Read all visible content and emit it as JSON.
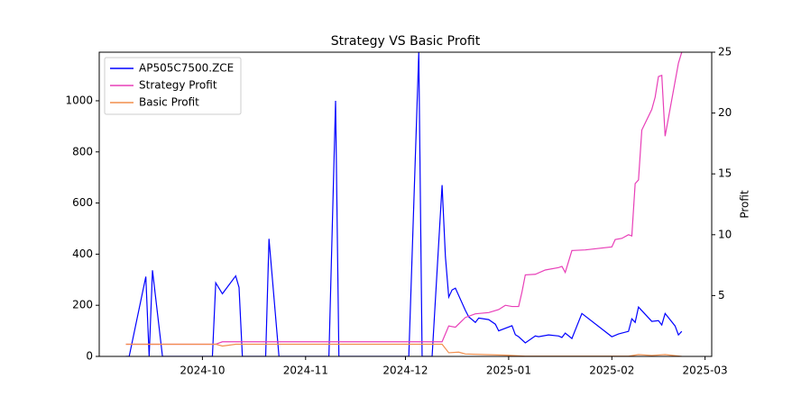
{
  "chart_data": {
    "type": "line",
    "title": "Strategy VS Basic Profit",
    "y2label": "Profit",
    "legend": "upper left",
    "xlim": [
      "2024-08-31",
      "2025-03-03"
    ],
    "xticks": [
      {
        "value": "2024-10-01",
        "label": "2024-10"
      },
      {
        "value": "2024-11-01",
        "label": "2024-11"
      },
      {
        "value": "2024-12-01",
        "label": "2024-12"
      },
      {
        "value": "2025-01-01",
        "label": "2025-01"
      },
      {
        "value": "2025-02-01",
        "label": "2025-02"
      },
      {
        "value": "2025-03-01",
        "label": "2025-03"
      }
    ],
    "ylim": [
      0,
      1190
    ],
    "yticks": [
      0,
      200,
      400,
      600,
      800,
      1000
    ],
    "y2lim": [
      0,
      25
    ],
    "y2ticks": [
      5,
      10,
      15,
      20,
      25
    ],
    "series": [
      {
        "name": "AP505C7500.ZCE",
        "color": "#0000ff",
        "x": [
          "2024-09-08",
          "2024-09-09",
          "2024-09-14",
          "2024-09-15",
          "2024-09-16",
          "2024-09-19",
          "2024-10-04",
          "2024-10-05",
          "2024-10-07",
          "2024-10-11",
          "2024-10-12",
          "2024-10-13",
          "2024-10-20",
          "2024-10-21",
          "2024-10-24",
          "2024-11-08",
          "2024-11-10",
          "2024-11-11",
          "2024-12-02",
          "2024-12-05",
          "2024-12-06",
          "2024-12-09",
          "2024-12-12",
          "2024-12-13",
          "2024-12-14",
          "2024-12-15",
          "2024-12-16",
          "2024-12-19",
          "2024-12-20",
          "2024-12-22",
          "2024-12-23",
          "2024-12-26",
          "2024-12-28",
          "2024-12-29",
          "2025-01-02",
          "2025-01-03",
          "2025-01-04",
          "2025-01-06",
          "2025-01-09",
          "2025-01-10",
          "2025-01-13",
          "2025-01-16",
          "2025-01-17",
          "2025-01-18",
          "2025-01-20",
          "2025-01-23",
          "2025-02-01",
          "2025-02-03",
          "2025-02-06",
          "2025-02-07",
          "2025-02-08",
          "2025-02-09",
          "2025-02-13",
          "2025-02-15",
          "2025-02-16",
          "2025-02-17",
          "2025-02-20",
          "2025-02-21",
          "2025-02-22"
        ],
        "values": [
          0,
          0,
          312,
          0,
          337,
          0,
          0,
          288,
          245,
          315,
          270,
          0,
          0,
          460,
          0,
          0,
          1000,
          0,
          0,
          1190,
          0,
          0,
          670,
          390,
          232,
          260,
          267,
          180,
          155,
          133,
          150,
          144,
          126,
          100,
          120,
          85,
          77,
          53,
          80,
          77,
          84,
          80,
          74,
          91,
          70,
          168,
          77,
          88,
          98,
          147,
          133,
          193,
          137,
          140,
          123,
          168,
          119,
          84,
          98
        ]
      },
      {
        "name": "Strategy Profit",
        "color": "#e83fb8",
        "axis": "y2",
        "x": [
          "2024-09-08",
          "2024-10-05",
          "2024-10-07",
          "2024-12-12",
          "2024-12-14",
          "2024-12-16",
          "2024-12-19",
          "2024-12-22",
          "2024-12-26",
          "2024-12-29",
          "2024-12-31",
          "2025-01-02",
          "2025-01-04",
          "2025-01-05",
          "2025-01-06",
          "2025-01-09",
          "2025-01-12",
          "2025-01-16",
          "2025-01-17",
          "2025-01-18",
          "2025-01-20",
          "2025-01-24",
          "2025-02-01",
          "2025-02-02",
          "2025-02-04",
          "2025-02-06",
          "2025-02-07",
          "2025-02-08",
          "2025-02-09",
          "2025-02-10",
          "2025-02-13",
          "2025-02-14",
          "2025-02-15",
          "2025-02-16",
          "2025-02-17",
          "2025-02-21",
          "2025-02-22"
        ],
        "values": [
          1.0,
          1.0,
          1.2,
          1.2,
          2.5,
          2.4,
          3.2,
          3.5,
          3.6,
          3.85,
          4.2,
          4.1,
          4.1,
          5.3,
          6.7,
          6.75,
          7.1,
          7.3,
          7.4,
          6.9,
          8.7,
          8.75,
          9.0,
          9.6,
          9.7,
          10.0,
          9.9,
          14.2,
          14.5,
          18.6,
          20.3,
          21.3,
          23.0,
          23.1,
          18.1,
          24.1,
          25.0
        ]
      },
      {
        "name": "Basic Profit",
        "color": "#f28e4c",
        "axis": "y2",
        "x": [
          "2024-09-08",
          "2024-10-05",
          "2024-10-07",
          "2024-10-11",
          "2024-12-12",
          "2024-12-14",
          "2024-12-17",
          "2024-12-19",
          "2024-12-25",
          "2024-12-31",
          "2025-01-06",
          "2025-02-06",
          "2025-02-09",
          "2025-02-13",
          "2025-02-17",
          "2025-02-22"
        ],
        "values": [
          1.0,
          1.0,
          0.85,
          1.0,
          1.0,
          0.3,
          0.35,
          0.2,
          0.15,
          0.1,
          0.02,
          0.02,
          0.15,
          0.08,
          0.15,
          0
        ]
      }
    ]
  }
}
